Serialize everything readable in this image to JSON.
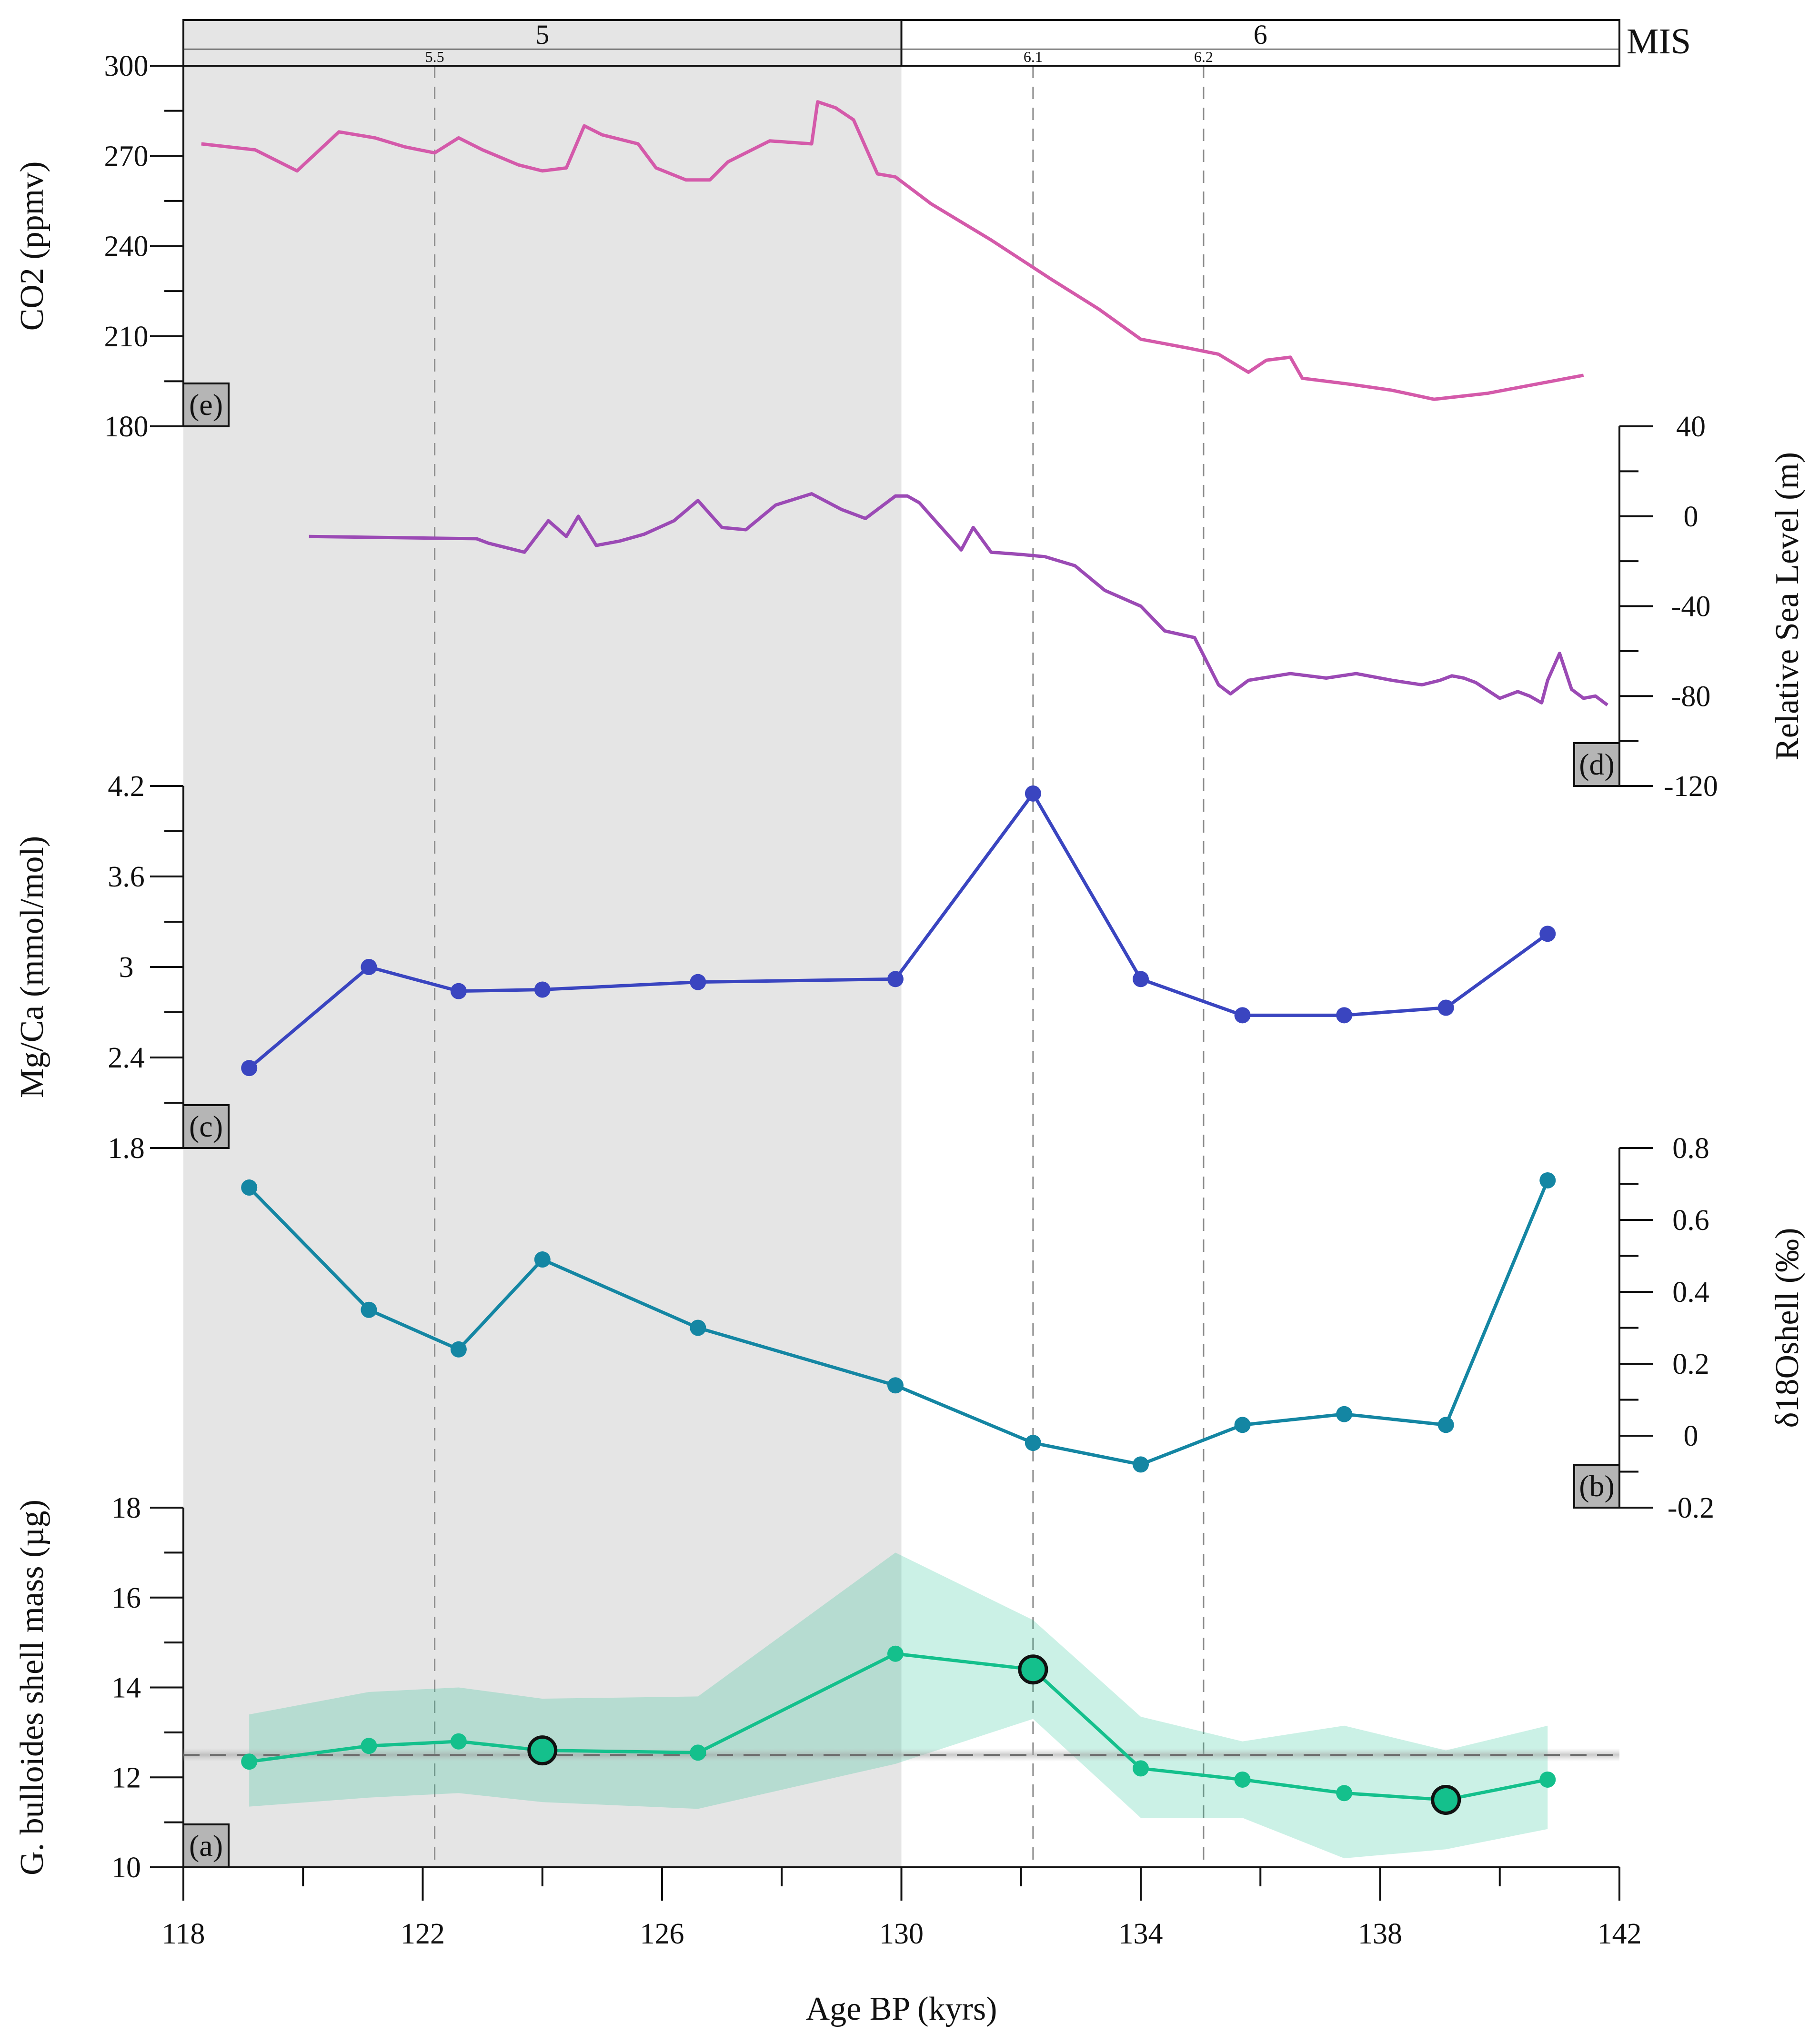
{
  "colors": {
    "co2": "#d45aaa",
    "sea_level": "#9b4ab5",
    "mgca": "#3a45c0",
    "d18o": "#1486a3",
    "mass": "#14c08c",
    "mass_band": "#b9ecdb",
    "mis5_shade": "#e5e5e5",
    "tag_fill": "#b5b5b5"
  },
  "chart_data": {
    "type": "line",
    "x": {
      "label": "Age BP (kyrs)",
      "lim": [
        118,
        142
      ],
      "ticks": [
        "118",
        "122",
        "126",
        "130",
        "134",
        "138",
        "142"
      ]
    },
    "mis": {
      "label": "MIS",
      "stages": [
        {
          "name": "5",
          "from": 118,
          "to": 130,
          "shaded": true
        },
        {
          "name": "6",
          "from": 130,
          "to": 142,
          "shaded": false
        }
      ],
      "substages": [
        {
          "name": "5.5",
          "x": 122.2
        },
        {
          "name": "6.1",
          "x": 132.2
        },
        {
          "name": "6.2",
          "x": 135.05
        }
      ]
    },
    "panels": [
      {
        "id": "e",
        "tag": "(e)",
        "ylabel": "CO2 (ppmv)",
        "ylim": [
          180,
          300
        ],
        "ticks": [
          "180",
          "210",
          "240",
          "270",
          "300"
        ],
        "axis": "left",
        "series": {
          "name": "CO2",
          "markers": false,
          "x": [
            118.3,
            119.2,
            119.9,
            120.6,
            121.2,
            121.7,
            122.2,
            122.6,
            123.0,
            123.6,
            124.0,
            124.4,
            124.7,
            125.0,
            125.6,
            125.9,
            126.4,
            126.8,
            127.1,
            127.8,
            128.5,
            128.6,
            128.9,
            129.2,
            129.6,
            129.9,
            130.5,
            131.5,
            132.5,
            133.3,
            134.0,
            134.8,
            135.3,
            135.8,
            136.1,
            136.5,
            136.7,
            137.5,
            138.2,
            138.9,
            139.8,
            141.4
          ],
          "y": [
            274,
            272,
            265,
            278,
            276,
            273,
            271,
            276,
            272,
            267,
            265,
            266,
            280,
            277,
            274,
            266,
            262,
            262,
            268,
            275,
            274,
            288,
            286,
            282,
            264,
            263,
            254,
            242,
            229,
            219,
            209,
            206,
            204,
            198,
            202,
            203,
            196,
            194,
            192,
            189,
            191,
            197
          ]
        }
      },
      {
        "id": "d",
        "tag": "(d)",
        "ylabel": "Relative Sea Level (m)",
        "ylim": [
          -120,
          40
        ],
        "ticks": [
          "-120",
          "-80",
          "-40",
          "0",
          "40"
        ],
        "axis": "right",
        "series": {
          "name": "Relative Sea Level",
          "markers": false,
          "x": [
            120.1,
            121.5,
            122.9,
            123.1,
            123.4,
            123.7,
            124.1,
            124.4,
            124.6,
            124.9,
            125.3,
            125.7,
            126.2,
            126.6,
            127.0,
            127.4,
            127.9,
            128.5,
            129.0,
            129.4,
            129.9,
            130.1,
            130.3,
            130.8,
            131.0,
            131.2,
            131.5,
            132.0,
            132.4,
            132.9,
            133.4,
            134.0,
            134.4,
            134.9,
            135.3,
            135.5,
            135.8,
            136.5,
            137.1,
            137.6,
            138.2,
            138.7,
            139.0,
            139.2,
            139.4,
            139.6,
            140.0,
            140.3,
            140.5,
            140.7,
            140.8,
            141.0,
            141.2,
            141.4,
            141.6,
            141.8
          ],
          "y": [
            -9,
            -9.5,
            -10,
            -12,
            -14,
            -16,
            -2,
            -9,
            0,
            -13,
            -11,
            -8,
            -2,
            7,
            -5,
            -6,
            5,
            10,
            3,
            -1,
            9,
            9,
            6,
            -9,
            -15,
            -5,
            -16,
            -17,
            -18,
            -22,
            -33,
            -40,
            -51,
            -54,
            -75,
            -79,
            -73,
            -70,
            -72,
            -70,
            -73,
            -75,
            -73,
            -71,
            -72,
            -74,
            -81,
            -78,
            -80,
            -83,
            -73,
            -61,
            -77,
            -81,
            -80,
            -84
          ]
        }
      },
      {
        "id": "c",
        "tag": "(c)",
        "ylabel": "Mg/Ca (mmol/mol)",
        "ylim": [
          1.8,
          4.2
        ],
        "ticks": [
          "1.8",
          "2.4",
          "3",
          "3.6",
          "4.2"
        ],
        "axis": "left",
        "series": {
          "name": "Mg/Ca",
          "markers": true,
          "x": [
            119.1,
            121.1,
            122.6,
            124.0,
            126.6,
            129.9,
            132.2,
            134.0,
            135.7,
            137.4,
            139.1,
            140.8
          ],
          "y": [
            2.33,
            3.0,
            2.84,
            2.85,
            2.9,
            2.92,
            4.15,
            2.92,
            2.68,
            2.68,
            2.73,
            3.22
          ]
        }
      },
      {
        "id": "b",
        "tag": "(b)",
        "ylabel": "δ18Oshell (‰)",
        "ylim": [
          -0.2,
          0.8
        ],
        "ticks": [
          "-0.2",
          "0",
          "0.2",
          "0.4",
          "0.6",
          "0.8"
        ],
        "axis": "right",
        "series": {
          "name": "δ18O shell",
          "markers": true,
          "x": [
            119.1,
            121.1,
            122.6,
            124.0,
            126.6,
            129.9,
            132.2,
            134.0,
            135.7,
            137.4,
            139.1,
            140.8
          ],
          "y": [
            0.69,
            0.35,
            0.24,
            0.49,
            0.3,
            0.14,
            -0.02,
            -0.08,
            0.03,
            0.06,
            0.03,
            0.71
          ]
        }
      },
      {
        "id": "a",
        "tag": "(a)",
        "ylabel": "G. bulloides shell mass (µg)",
        "ylim": [
          10,
          18
        ],
        "ticks": [
          "10",
          "12",
          "14",
          "16",
          "18"
        ],
        "axis": "left",
        "reference_line": 12.5,
        "series": {
          "name": "Shell mass",
          "markers": true,
          "x": [
            119.1,
            121.1,
            122.6,
            124.0,
            126.6,
            129.9,
            132.2,
            134.0,
            135.7,
            137.4,
            139.1,
            140.8
          ],
          "y": [
            12.35,
            12.7,
            12.8,
            12.6,
            12.55,
            14.75,
            14.4,
            12.2,
            11.95,
            11.65,
            11.5,
            11.95
          ],
          "lower": [
            11.35,
            11.55,
            11.65,
            11.45,
            11.3,
            12.3,
            13.3,
            11.1,
            11.1,
            10.2,
            10.4,
            10.85
          ],
          "upper": [
            13.4,
            13.9,
            14.0,
            13.75,
            13.8,
            17.0,
            15.5,
            13.35,
            12.8,
            13.15,
            12.6,
            13.15
          ],
          "highlighted": [
            124.0,
            132.2,
            139.1
          ]
        }
      }
    ]
  }
}
